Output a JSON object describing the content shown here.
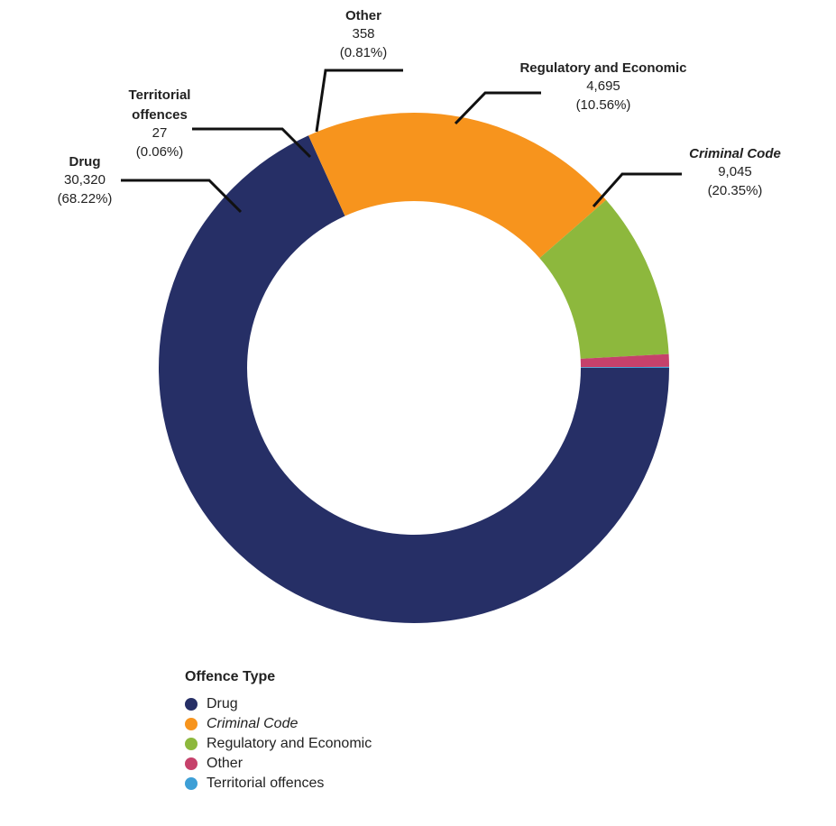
{
  "chart_data": {
    "type": "pie",
    "donut": true,
    "categories": [
      "Drug",
      "Criminal Code",
      "Regulatory and Economic",
      "Other",
      "Territorial offences"
    ],
    "values": [
      30320,
      9045,
      4695,
      358,
      27
    ],
    "value_labels": [
      "30,320",
      "9,045",
      "4,695",
      "358",
      "27"
    ],
    "percent_labels": [
      "(68.22%)",
      "(20.35%)",
      "(10.56%)",
      "(0.81%)",
      "(0.06%)"
    ],
    "callout_names": [
      [
        "Drug"
      ],
      [
        "Criminal Code"
      ],
      [
        "Regulatory and Economic"
      ],
      [
        "Other"
      ],
      [
        "Territorial",
        "offences"
      ]
    ],
    "italic": [
      false,
      true,
      false,
      false,
      false
    ],
    "colors": [
      "#262f66",
      "#f7941d",
      "#8db83d",
      "#c6416b",
      "#3d9fd6"
    ],
    "legend_title": "Offence Type",
    "legend_placement": "bottom-left"
  }
}
